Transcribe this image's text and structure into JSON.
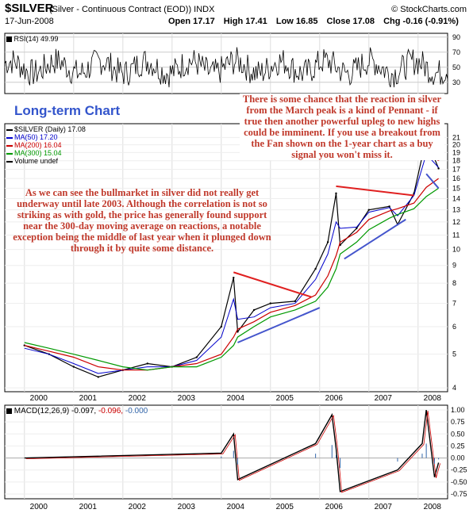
{
  "header": {
    "symbol": "$SILVER",
    "description": "(Silver - Continuous Contract (EOD)) INDX",
    "watermark": "© StockCharts.com",
    "date": "17-Jun-2008",
    "open": "Open 17.17",
    "high": "High 17.41",
    "low": "Low 16.85",
    "close": "Close 17.08",
    "change": "Chg -0.16 (-0.91%)",
    "change_arrow_color": "#cc0000"
  },
  "rsi_panel": {
    "label": "RSI(14) 49.99",
    "ticks": [
      "90",
      "70",
      "50",
      "30"
    ]
  },
  "price_panel": {
    "title": "Long-term Chart",
    "legend": [
      {
        "text": "$SILVER (Daily) 17.08",
        "color": "#000000"
      },
      {
        "text": "MA(50) 17.20",
        "color": "#0000cc"
      },
      {
        "text": "MA(200) 16.04",
        "color": "#cc0000"
      },
      {
        "text": "MA(300) 15.04",
        "color": "#009900"
      },
      {
        "text": "Volume undef",
        "color": "#000000"
      }
    ],
    "right_ticks": [
      "21",
      "20",
      "19",
      "18",
      "17",
      "16",
      "15",
      "14",
      "13",
      "12",
      "11",
      "10",
      "9",
      "8",
      "7",
      "6",
      "5",
      "4"
    ],
    "note_top": "There is some chance that the reaction in silver from the March peak is a kind of Pennant - if true then another powerful upleg to new highs could be imminent. If you use a breakout from the Fan shown on the 1-year chart as a buy signal you won't miss it.",
    "note_left": "As we can see the bullmarket in silver did not really get underway until late 2003. Although the correlation is not so striking as with gold, the price has generally found support near the 300-day moving average on reactions, a notable exception being the middle of last year when it plunged down through it by quite some distance."
  },
  "x_axis": {
    "years": [
      "2000",
      "2001",
      "2002",
      "2003",
      "2004",
      "2005",
      "2006",
      "2007",
      "2008"
    ]
  },
  "macd_panel": {
    "label": "MACD(12,26,9)",
    "values": [
      "-0.097,",
      "-0.096,",
      "-0.000"
    ],
    "value_colors": [
      "#000000",
      "#cc0000",
      "#3366aa"
    ],
    "ticks": [
      "1.00",
      "0.75",
      "0.50",
      "0.25",
      "0.00",
      "-0.25",
      "-0.50",
      "-0.75"
    ]
  },
  "chart_data": {
    "type": "line",
    "scale": "log",
    "x": [
      "2000-01",
      "2000-07",
      "2001-01",
      "2001-07",
      "2002-01",
      "2002-07",
      "2003-01",
      "2003-07",
      "2004-01",
      "2004-04",
      "2004-05",
      "2004-09",
      "2005-01",
      "2005-07",
      "2005-12",
      "2006-03",
      "2006-05",
      "2006-06",
      "2006-10",
      "2007-01",
      "2007-06",
      "2007-08",
      "2007-12",
      "2008-03",
      "2008-06"
    ],
    "series": [
      {
        "name": "$SILVER (Daily) 17.08",
        "values": [
          5.3,
          5.0,
          4.6,
          4.3,
          4.5,
          4.7,
          4.6,
          4.9,
          6.0,
          8.3,
          5.8,
          6.7,
          7.0,
          7.1,
          8.8,
          10.5,
          14.5,
          10.3,
          11.5,
          13.0,
          13.3,
          11.8,
          14.5,
          20.9,
          17.1
        ]
      },
      {
        "name": "MA(50) 17.20",
        "values": [
          5.2,
          5.0,
          4.7,
          4.4,
          4.5,
          4.6,
          4.6,
          4.8,
          5.6,
          7.2,
          6.3,
          6.4,
          6.8,
          7.0,
          8.2,
          9.7,
          12.0,
          11.5,
          11.6,
          12.8,
          13.2,
          12.5,
          14.3,
          18.8,
          17.2
        ]
      },
      {
        "name": "MA(200) 16.04",
        "values": [
          5.3,
          5.1,
          4.9,
          4.6,
          4.5,
          4.5,
          4.6,
          4.7,
          5.0,
          5.6,
          5.9,
          6.2,
          6.6,
          6.9,
          7.4,
          8.4,
          9.6,
          10.5,
          11.2,
          12.2,
          12.9,
          13.1,
          13.6,
          15.1,
          16.0
        ]
      },
      {
        "name": "MA(300) 15.04",
        "values": [
          5.4,
          5.2,
          5.0,
          4.8,
          4.6,
          4.5,
          4.6,
          4.6,
          4.9,
          5.3,
          5.6,
          6.0,
          6.4,
          6.7,
          7.1,
          7.8,
          8.8,
          9.7,
          10.5,
          11.4,
          12.3,
          12.6,
          13.1,
          14.2,
          15.0
        ]
      }
    ],
    "ylim": [
      3.9,
      23
    ],
    "rsi": {
      "ylim": [
        15,
        95
      ],
      "levels": [
        30,
        50,
        70
      ]
    },
    "macd": {
      "ylim": [
        -0.85,
        1.1
      ],
      "x": [
        "2000-01",
        "2004-01",
        "2004-04",
        "2004-05",
        "2005-12",
        "2006-04",
        "2006-05",
        "2006-06",
        "2007-08",
        "2008-02",
        "2008-03",
        "2008-05",
        "2008-06"
      ],
      "values": [
        0.0,
        0.1,
        0.5,
        -0.45,
        0.3,
        0.9,
        0.2,
        -0.7,
        -0.25,
        0.3,
        1.0,
        -0.4,
        -0.097
      ]
    },
    "trendlines": [
      {
        "name": "",
        "color": "#e02020",
        "points": [
          [
            "2004-04",
            8.6
          ],
          [
            "2005-11",
            7.3
          ]
        ]
      },
      {
        "name": "",
        "color": "#4455cc",
        "points": [
          [
            "2004-05",
            5.4
          ],
          [
            "2006-01",
            6.8
          ]
        ]
      },
      {
        "name": "",
        "color": "#e02020",
        "points": [
          [
            "2006-05",
            15.2
          ],
          [
            "2007-12",
            14.3
          ]
        ]
      },
      {
        "name": "",
        "color": "#4455cc",
        "points": [
          [
            "2006-07",
            9.4
          ],
          [
            "2007-10",
            12.2
          ]
        ]
      },
      {
        "name": "",
        "color": "#e02020",
        "points": [
          [
            "2008-03",
            21.4
          ],
          [
            "2008-06",
            18.0
          ]
        ]
      },
      {
        "name": "",
        "color": "#4455cc",
        "points": [
          [
            "2008-03",
            16.5
          ],
          [
            "2008-06",
            15.0
          ]
        ]
      }
    ]
  }
}
